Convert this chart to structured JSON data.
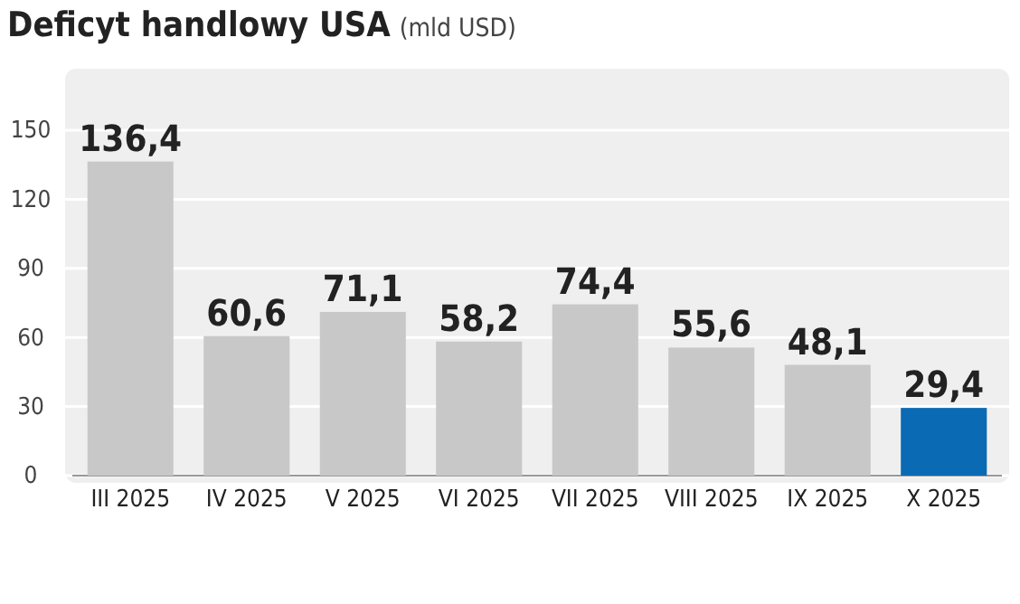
{
  "chart_data": {
    "type": "bar",
    "title": "Deficyt handlowy USA",
    "subtitle": "(mld USD)",
    "categories": [
      "III 2025",
      "IV 2025",
      "V 2025",
      "VI 2025",
      "VII 2025",
      "VIII 2025",
      "IX 2025",
      "X 2025"
    ],
    "values": [
      136.4,
      60.6,
      71.1,
      58.2,
      74.4,
      55.6,
      48.1,
      29.4
    ],
    "value_labels": [
      "136,4",
      "60,6",
      "71,1",
      "58,2",
      "74,4",
      "55,6",
      "48,1",
      "29,4"
    ],
    "colors": [
      "#c8c8c8",
      "#c8c8c8",
      "#c8c8c8",
      "#c8c8c8",
      "#c8c8c8",
      "#c8c8c8",
      "#c8c8c8",
      "#0a6ab4"
    ],
    "ylim": [
      0,
      150
    ],
    "yticks": [
      0,
      30,
      60,
      90,
      120,
      150
    ],
    "grid": "y"
  }
}
